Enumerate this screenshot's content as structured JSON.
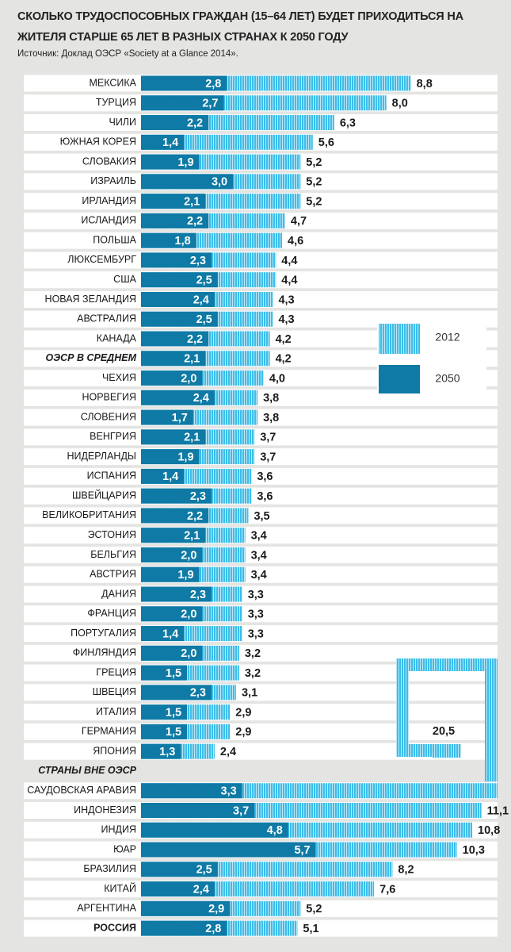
{
  "chart_data": {
    "type": "bar",
    "title": "СКОЛЬКО ТРУДОСПОСОБНЫХ ГРАЖДАН (15–64 ЛЕТ) БУДЕТ ПРИХОДИТЬСЯ НА ЖИТЕЛЯ СТАРШЕ 65 ЛЕТ В РАЗНЫХ СТРАНАХ К 2050 ГОДУ",
    "subtitle": "Источник: Доклад ОЭСР «Society at a Glance 2014».",
    "categories": [
      "МЕКСИКА",
      "ТУРЦИЯ",
      "ЧИЛИ",
      "ЮЖНАЯ КОРЕЯ",
      "СЛОВАКИЯ",
      "ИЗРАИЛЬ",
      "ИРЛАНДИЯ",
      "ИСЛАНДИЯ",
      "ПОЛЬША",
      "ЛЮКСЕМБУРГ",
      "США",
      "НОВАЯ ЗЕЛАНДИЯ",
      "АВСТРАЛИЯ",
      "КАНАДА",
      "ОЭСР В СРЕДНЕМ",
      "ЧЕХИЯ",
      "НОРВЕГИЯ",
      "СЛОВЕНИЯ",
      "ВЕНГРИЯ",
      "НИДЕРЛАНДЫ",
      "ИСПАНИЯ",
      "ШВЕЙЦАРИЯ",
      "ВЕЛИКОБРИТАНИЯ",
      "ЭСТОНИЯ",
      "БЕЛЬГИЯ",
      "АВСТРИЯ",
      "ДАНИЯ",
      "ФРАНЦИЯ",
      "ПОРТУГАЛИЯ",
      "ФИНЛЯНДИЯ",
      "ГРЕЦИЯ",
      "ШВЕЦИЯ",
      "ИТАЛИЯ",
      "ГЕРМАНИЯ",
      "ЯПОНИЯ",
      "СТРАНЫ ВНЕ ОЭСР",
      "САУДОВСКАЯ АРАВИЯ",
      "ИНДОНЕЗИЯ",
      "ИНДИЯ",
      "ЮАР",
      "БРАЗИЛИЯ",
      "КИТАЙ",
      "АРГЕНТИНА",
      "РОССИЯ"
    ],
    "series": [
      {
        "name": "2012",
        "color": "#3dbde9",
        "values": [
          8.8,
          8.0,
          6.3,
          5.6,
          5.2,
          5.2,
          5.2,
          4.7,
          4.6,
          4.4,
          4.4,
          4.3,
          4.3,
          4.2,
          4.2,
          4.0,
          3.8,
          3.8,
          3.7,
          3.7,
          3.6,
          3.6,
          3.5,
          3.4,
          3.4,
          3.4,
          3.3,
          3.3,
          3.3,
          3.2,
          3.2,
          3.1,
          2.9,
          2.9,
          2.4,
          null,
          20.5,
          11.1,
          10.8,
          10.3,
          8.2,
          7.6,
          5.2,
          5.1
        ],
        "value_labels": [
          "8,8",
          "8,0",
          "6,3",
          "5,6",
          "5,2",
          "5,2",
          "5,2",
          "4,7",
          "4,6",
          "4,4",
          "4,4",
          "4,3",
          "4,3",
          "4,2",
          "4,2",
          "4,0",
          "3,8",
          "3,8",
          "3,7",
          "3,7",
          "3,6",
          "3,6",
          "3,5",
          "3,4",
          "3,4",
          "3,4",
          "3,3",
          "3,3",
          "3,3",
          "3,2",
          "3,2",
          "3,1",
          "2,9",
          "2,9",
          "2,4",
          null,
          "20,5",
          "11,1",
          "10,8",
          "10,3",
          "8,2",
          "7,6",
          "5,2",
          "5,1"
        ]
      },
      {
        "name": "2050",
        "color": "#0e7aa5",
        "values": [
          2.8,
          2.7,
          2.2,
          1.4,
          1.9,
          3.0,
          2.1,
          2.2,
          1.8,
          2.3,
          2.5,
          2.4,
          2.5,
          2.2,
          2.1,
          2.0,
          2.4,
          1.7,
          2.1,
          1.9,
          1.4,
          2.3,
          2.2,
          2.1,
          2.0,
          1.9,
          2.3,
          2.0,
          1.4,
          2.0,
          1.5,
          2.3,
          1.5,
          1.5,
          1.3,
          null,
          3.3,
          3.7,
          4.8,
          5.7,
          2.5,
          2.4,
          2.9,
          2.8
        ],
        "value_labels": [
          "2,8",
          "2,7",
          "2,2",
          "1,4",
          "1,9",
          "3,0",
          "2,1",
          "2,2",
          "1,8",
          "2,3",
          "2,5",
          "2,4",
          "2,5",
          "2,2",
          "2,1",
          "2,0",
          "2,4",
          "1,7",
          "2,1",
          "1,9",
          "1,4",
          "2,3",
          "2,2",
          "2,1",
          "2,0",
          "1,9",
          "2,3",
          "2,0",
          "1,4",
          "2,0",
          "1,5",
          "2,3",
          "1,5",
          "1,5",
          "1,3",
          null,
          "3,3",
          "3,7",
          "4,8",
          "5,7",
          "2,5",
          "2,4",
          "2,9",
          "2,8"
        ]
      }
    ],
    "xlim": [
      0,
      11.6
    ]
  }
}
